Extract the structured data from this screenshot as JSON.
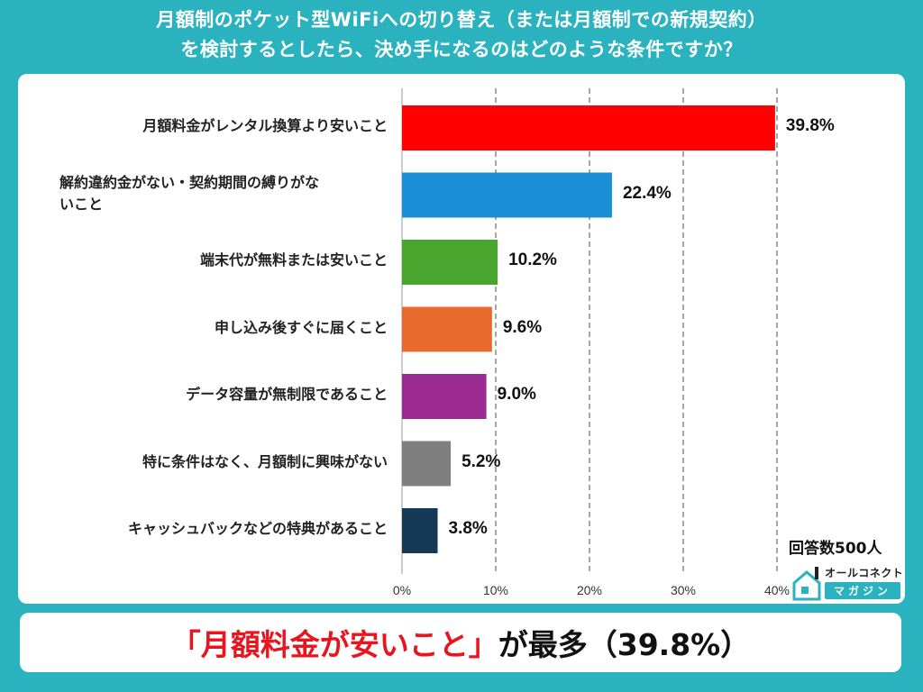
{
  "title": {
    "line1": "月額制のポケット型WiFiへの切り替え（または月額制での新規契約）",
    "line2": "を検討するとしたら、決め手になるのはどのような条件ですか？"
  },
  "chart_data": {
    "type": "bar",
    "orientation": "horizontal",
    "categories": [
      [
        "月額料金がレンタル換算より安いこと"
      ],
      [
        "解約違約金がない・契約期間の縛りがな",
        "いこと"
      ],
      [
        "端末代が無料または安いこと"
      ],
      [
        "申し込み後すぐに届くこと"
      ],
      [
        "データ容量が無制限であること"
      ],
      [
        "特に条件はなく、月額制に興味がない"
      ],
      [
        "キャッシュバックなどの特典があること"
      ]
    ],
    "values": [
      39.8,
      22.4,
      10.2,
      9.6,
      9.0,
      5.2,
      3.8
    ],
    "value_labels": [
      "39.8%",
      "22.4%",
      "10.2%",
      "9.6%",
      "9.0%",
      "5.2%",
      "3.8%"
    ],
    "colors": [
      "#ff0000",
      "#1a8ed6",
      "#4aa52e",
      "#e86b2e",
      "#9b2a91",
      "#7f7f7f",
      "#163a55"
    ],
    "xlim": [
      0,
      40
    ],
    "xticks": [
      "0%",
      "10%",
      "20%",
      "30%",
      "40%"
    ],
    "grid": "vertical dashed"
  },
  "respondents": "回答数500人",
  "logo": {
    "top": "オールコネクト",
    "bottom": "マガジン"
  },
  "banner": {
    "highlight": "「月額料金が安いこと」",
    "rest": "が最多（39.8%）"
  }
}
